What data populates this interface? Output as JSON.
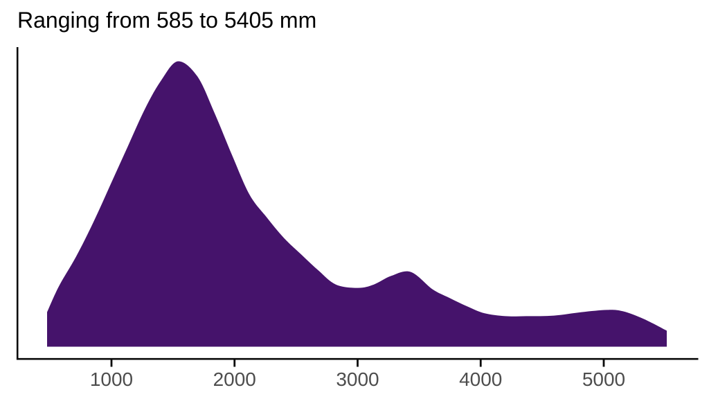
{
  "chart": {
    "title": "Ranging from 585 to 5405 mm"
  },
  "chart_data": {
    "type": "area",
    "subtype": "density",
    "title": "Ranging from 585 to 5405 mm",
    "xlabel": "",
    "ylabel": "",
    "unit": "mm",
    "range_min_label": 585,
    "range_max_label": 5405,
    "x_ticks": [
      1000,
      2000,
      3000,
      4000,
      5000
    ],
    "xlim": [
      420,
      5770
    ],
    "ylim_relative": [
      0,
      1.05
    ],
    "grid": false,
    "legend": false,
    "x": [
      477,
      572,
      713,
      854,
      994,
      1135,
      1276,
      1405,
      1540,
      1698,
      1838,
      1979,
      2120,
      2260,
      2401,
      2542,
      2682,
      2823,
      3003,
      3132,
      3273,
      3432,
      3610,
      3751,
      3892,
      4032,
      4201,
      4370,
      4595,
      4820,
      5028,
      5157,
      5326,
      5512
    ],
    "density_rel": [
      0.121,
      0.211,
      0.316,
      0.437,
      0.57,
      0.704,
      0.837,
      0.934,
      1.0,
      0.947,
      0.818,
      0.672,
      0.534,
      0.454,
      0.381,
      0.323,
      0.267,
      0.218,
      0.206,
      0.218,
      0.248,
      0.262,
      0.201,
      0.17,
      0.141,
      0.117,
      0.107,
      0.107,
      0.109,
      0.121,
      0.129,
      0.124,
      0.097,
      0.056
    ],
    "area_color": "#45136B",
    "axis_color": "#0a0a0a",
    "tick_label_color": "#4D4D4D",
    "title_color": "#000000"
  }
}
